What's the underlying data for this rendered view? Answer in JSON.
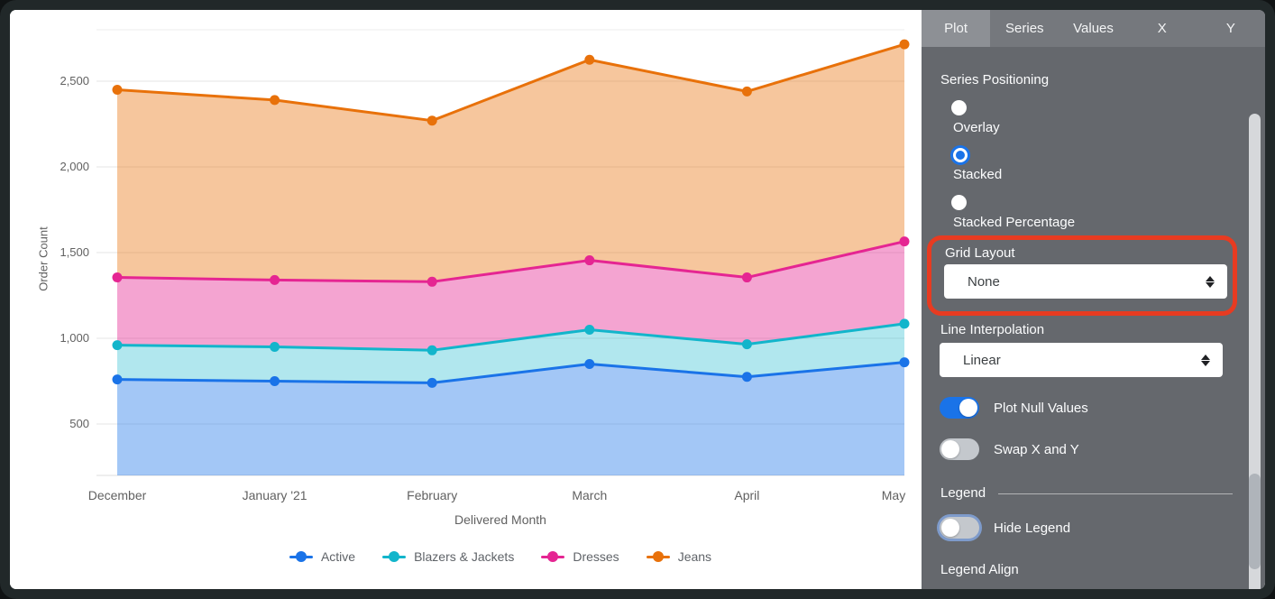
{
  "chart_data": {
    "type": "area",
    "stacked": true,
    "title": "",
    "xlabel": "Delivered Month",
    "ylabel": "Order Count",
    "categories": [
      "December",
      "January '21",
      "February",
      "March",
      "April",
      "May"
    ],
    "series": [
      {
        "name": "Active",
        "color": "#1A73E8",
        "values": [
          760,
          750,
          740,
          850,
          775,
          860
        ]
      },
      {
        "name": "Blazers & Jackets",
        "color": "#12B5CB",
        "values": [
          960,
          950,
          930,
          1050,
          965,
          1085
        ]
      },
      {
        "name": "Dresses",
        "color": "#E52592",
        "values": [
          1355,
          1340,
          1330,
          1455,
          1355,
          1565
        ]
      },
      {
        "name": "Jeans",
        "color": "#E8710A",
        "values": [
          2450,
          2390,
          2270,
          2625,
          2440,
          2715
        ]
      }
    ],
    "ylim": [
      200,
      2800
    ],
    "yticks": [
      500,
      1000,
      1500,
      2000,
      2500
    ],
    "ytick_labels": [
      "500",
      "1,000",
      "1,500",
      "2,000",
      "2,500"
    ],
    "grid": true,
    "legend_position": "bottom"
  },
  "panel": {
    "tabs": [
      {
        "label": "Plot"
      },
      {
        "label": "Series"
      },
      {
        "label": "Values"
      },
      {
        "label": "X"
      },
      {
        "label": "Y"
      }
    ],
    "series_positioning": {
      "label": "Series Positioning",
      "options": [
        {
          "label": "Overlay",
          "selected": false
        },
        {
          "label": "Stacked",
          "selected": true
        },
        {
          "label": "Stacked Percentage",
          "selected": false
        }
      ]
    },
    "grid_layout": {
      "label": "Grid Layout",
      "value": "None"
    },
    "line_interpolation": {
      "label": "Line Interpolation",
      "value": "Linear"
    },
    "plot_null_values": {
      "label": "Plot Null Values",
      "on": true
    },
    "swap_x_y": {
      "label": "Swap X and Y",
      "on": false
    },
    "legend_section": {
      "header": "Legend",
      "hide_legend": {
        "label": "Hide Legend",
        "on": false
      },
      "legend_align_label": "Legend Align"
    },
    "annotation_color": "#E73B21",
    "accent_color": "#1A73E8"
  }
}
